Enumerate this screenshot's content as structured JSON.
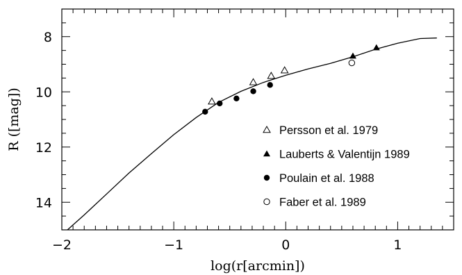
{
  "chart_data": {
    "type": "scatter",
    "xlabel": "log(r[arcmin])",
    "ylabel": "R ([mag])",
    "xlim": [
      -2.0,
      1.5
    ],
    "ylim": [
      15.0,
      7.0
    ],
    "y_inverted": true,
    "x_ticks": [
      -2,
      -1,
      0,
      1
    ],
    "x_tick_labels": [
      "−2",
      "−1",
      "0",
      "1"
    ],
    "y_ticks": [
      8,
      10,
      12,
      14
    ],
    "y_tick_labels": [
      "8",
      "10",
      "12",
      "14"
    ],
    "legend_position": "lower-right",
    "series": [
      {
        "name": "Persson et al. 1979",
        "marker": "open-triangle",
        "points": [
          [
            -0.66,
            10.35
          ],
          [
            -0.29,
            9.65
          ],
          [
            -0.13,
            9.42
          ],
          [
            -0.01,
            9.22
          ]
        ]
      },
      {
        "name": "Lauberts & Valentijn 1989",
        "marker": "filled-triangle",
        "points": [
          [
            0.6,
            8.7
          ],
          [
            0.81,
            8.4
          ]
        ]
      },
      {
        "name": "Poulain et al. 1988",
        "marker": "filled-circle",
        "points": [
          [
            -0.72,
            10.72
          ],
          [
            -0.59,
            10.42
          ],
          [
            -0.44,
            10.24
          ],
          [
            -0.29,
            9.98
          ],
          [
            -0.14,
            9.75
          ]
        ]
      },
      {
        "name": "Faber et al. 1989",
        "marker": "open-circle",
        "points": [
          [
            0.59,
            8.95
          ]
        ]
      }
    ],
    "curve": {
      "points": [
        [
          -1.95,
          15.0
        ],
        [
          -1.8,
          14.46
        ],
        [
          -1.6,
          13.7
        ],
        [
          -1.4,
          12.94
        ],
        [
          -1.2,
          12.24
        ],
        [
          -1.0,
          11.55
        ],
        [
          -0.8,
          10.93
        ],
        [
          -0.6,
          10.38
        ],
        [
          -0.4,
          9.98
        ],
        [
          -0.2,
          9.66
        ],
        [
          0.0,
          9.4
        ],
        [
          0.2,
          9.17
        ],
        [
          0.4,
          8.97
        ],
        [
          0.6,
          8.73
        ],
        [
          0.8,
          8.46
        ],
        [
          1.0,
          8.24
        ],
        [
          1.2,
          8.07
        ],
        [
          1.35,
          8.05
        ]
      ]
    }
  }
}
